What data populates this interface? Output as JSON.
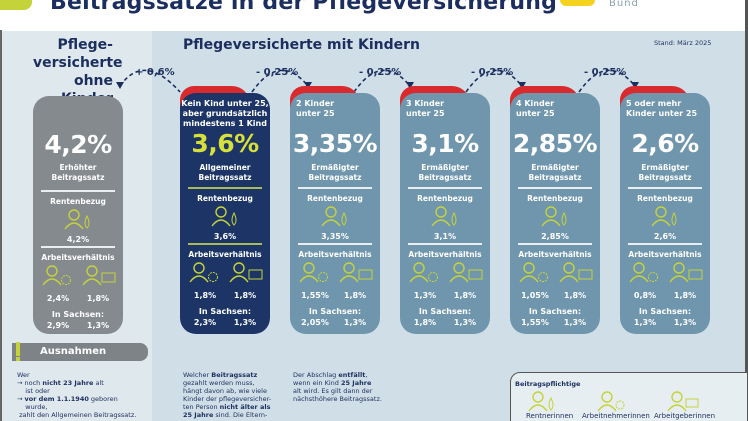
{
  "header": {
    "title": "Beitragssätze in der Pflegeversicherung",
    "logo_text": "Bund"
  },
  "left_heading": [
    "Pflege-",
    "versicherte",
    "ohne Kinder"
  ],
  "right_heading": "Pflegeversicherte mit Kindern",
  "stand": "Stand: März 2025",
  "arcs": [
    "+ 0,6%",
    "- 0,25%",
    "- 0,25%",
    "- 0,25%",
    "- 0,25%"
  ],
  "colors": {
    "accent_green": "#c5d33a",
    "navy": "#1c3566",
    "card_blue": "#6f96ad",
    "card_gray": "#858a8f",
    "red": "#d92a2e"
  },
  "labels": {
    "rentenbezug": "Rentenbezug",
    "arbeitsverhaeltnis": "Arbeitsverhältnis",
    "sachsen": "In Sachsen:"
  },
  "cards": [
    {
      "caption": "",
      "rate": "4,2%",
      "type_line1": "Erhöhter",
      "type_line2": "Beitragssatz",
      "rente": "4,2%",
      "arbeitnehmer": "2,4%",
      "arbeitgeber": "1,8%",
      "sachsen_an": "2,9%",
      "sachsen_ag": "1,3%"
    },
    {
      "caption_lines": [
        "Kein Kind unter 25,",
        "aber grundsätzlich",
        "mindestens  1 Kind"
      ],
      "rate": "3,6%",
      "type_line1": "Allgemeiner",
      "type_line2": "Beitragssatz",
      "rente": "3,6%",
      "arbeitnehmer": "1,8%",
      "arbeitgeber": "1,8%",
      "sachsen_an": "2,3%",
      "sachsen_ag": "1,3%"
    },
    {
      "caption_lines": [
        "2 Kinder",
        "unter 25"
      ],
      "rate": "3,35%",
      "type_line1": "Ermäßigter",
      "type_line2": "Beitragssatz",
      "rente": "3,35%",
      "arbeitnehmer": "1,55%",
      "arbeitgeber": "1,8%",
      "sachsen_an": "2,05%",
      "sachsen_ag": "1,3%"
    },
    {
      "caption_lines": [
        "3 Kinder",
        "unter 25"
      ],
      "rate": "3,1%",
      "type_line1": "Ermäßigter",
      "type_line2": "Beitragssatz",
      "rente": "3,1%",
      "arbeitnehmer": "1,3%",
      "arbeitgeber": "1,8%",
      "sachsen_an": "1,8%",
      "sachsen_ag": "1,3%"
    },
    {
      "caption_lines": [
        "4 Kinder",
        "unter 25"
      ],
      "rate": "2,85%",
      "type_line1": "Ermäßigter",
      "type_line2": "Beitragssatz",
      "rente": "2,85%",
      "arbeitnehmer": "1,05%",
      "arbeitgeber": "1,8%",
      "sachsen_an": "1,55%",
      "sachsen_ag": "1,3%"
    },
    {
      "caption_lines": [
        "5 oder mehr",
        "Kinder unter 25"
      ],
      "rate": "2,6%",
      "type_line1": "Ermäßigter",
      "type_line2": "Beitragssatz",
      "rente": "2,6%",
      "arbeitnehmer": "0,8%",
      "arbeitgeber": "1,8%",
      "sachsen_an": "1,3%",
      "sachsen_ag": "1,3%"
    }
  ],
  "ausnahmen": {
    "title": "Ausnahmen",
    "lines": [
      {
        "pre": "Wer",
        "bold": "",
        "post": ""
      },
      {
        "pre": "→ noch ",
        "bold": "nicht 23 Jahre",
        "post": " alt"
      },
      {
        "pre": "    ist oder",
        "bold": "",
        "post": ""
      },
      {
        "pre": "→ ",
        "bold": "vor dem 1.1.1940",
        "post": " geboren"
      },
      {
        "pre": "    wurde,",
        "bold": "",
        "post": ""
      },
      {
        "pre": " zahlt den Allgemeinen Beitragssatz.",
        "bold": "",
        "post": ""
      }
    ]
  },
  "note_mid": {
    "lines": [
      {
        "pre": "Welcher ",
        "bold": "Beitragssatz",
        "post": ""
      },
      {
        "pre": "gezahlt werden muss,",
        "bold": "",
        "post": ""
      },
      {
        "pre": "hängt davon ab, wie viele",
        "bold": "",
        "post": ""
      },
      {
        "pre": "Kinder der pflegeversicher-",
        "bold": "",
        "post": ""
      },
      {
        "pre": "ten Person ",
        "bold": "nicht älter als",
        "post": ""
      },
      {
        "pre": "",
        "bold": "25 Jahre",
        "post": " sind. Die Eltern-"
      }
    ]
  },
  "note_right": {
    "lines": [
      {
        "pre": "Der Abschlag ",
        "bold": "entfällt",
        "post": ","
      },
      {
        "pre": "wenn ein Kind ",
        "bold": "25 Jahre",
        "post": ""
      },
      {
        "pre": "alt wird. Es gilt dann der",
        "bold": "",
        "post": ""
      },
      {
        "pre": "nächsthöhere Beitragssatz.",
        "bold": "",
        "post": ""
      }
    ]
  },
  "legend": {
    "title": "Beitragspflichtige",
    "items": [
      "Rentnerinnen",
      "Arbeitnehmerinnen",
      "Arbeitgeberinnen"
    ]
  }
}
